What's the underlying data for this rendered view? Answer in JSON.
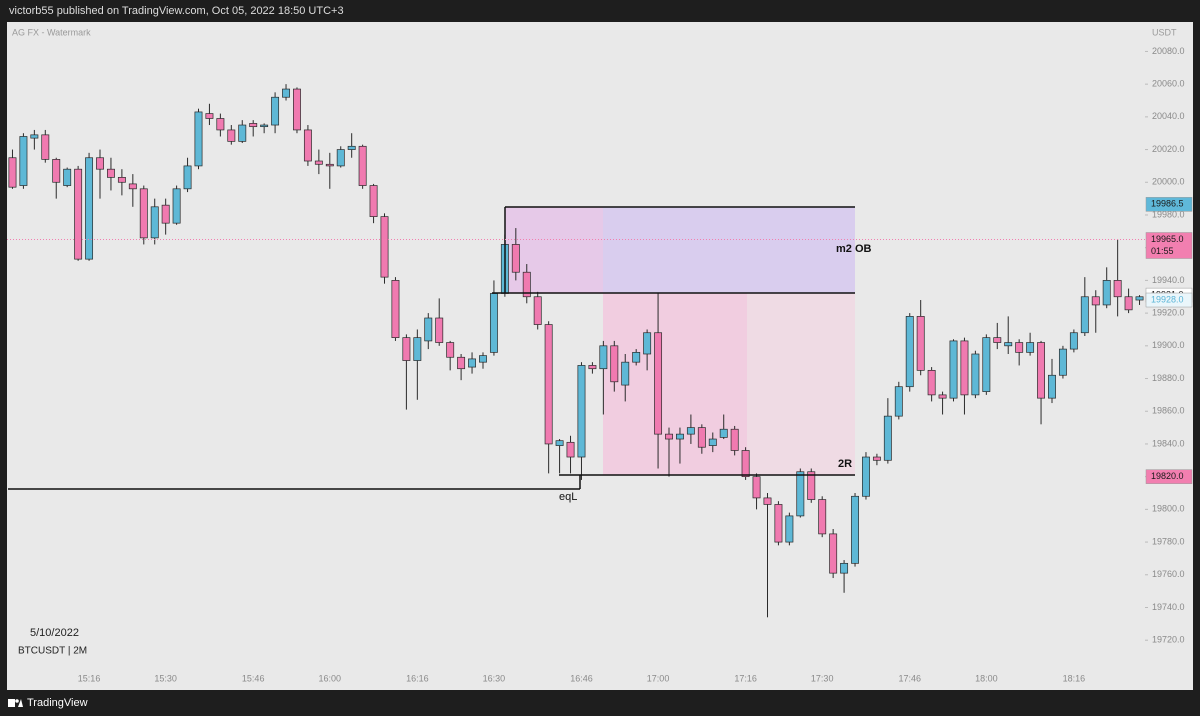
{
  "chart_data": {
    "type": "candlestick",
    "published": "victorb55 published on TradingView.com, Oct 05, 2022 18:50 UTC+3",
    "watermark": "AG FX - Watermark",
    "currency": "USDT",
    "date": "5/10/2022",
    "symbol": "BTCUSDT | 2M",
    "brand": "TradingView",
    "annotations": [
      "m2 OB",
      "2R",
      "eqL"
    ],
    "up_color": "#5eb8d6",
    "down_color": "#f07ab0",
    "categories": [
      null,
      null,
      null,
      null,
      null,
      null,
      null,
      "15:16",
      null,
      null,
      null,
      null,
      null,
      null,
      "15:30",
      null,
      null,
      null,
      null,
      null,
      null,
      null,
      "15:46",
      null,
      null,
      null,
      null,
      null,
      null,
      "16:00",
      null,
      null,
      null,
      null,
      null,
      null,
      null,
      "16:16",
      null,
      null,
      null,
      null,
      null,
      null,
      "16:30",
      null,
      null,
      null,
      null,
      null,
      null,
      null,
      "16:46",
      null,
      null,
      null,
      null,
      null,
      null,
      "17:00",
      null,
      null,
      null,
      null,
      null,
      null,
      null,
      "17:16",
      null,
      null,
      null,
      null,
      null,
      null,
      "17:30",
      null,
      null,
      null,
      null,
      null,
      null,
      null,
      "17:46",
      null,
      null,
      null,
      null,
      null,
      null,
      "18:00",
      null,
      null,
      null,
      null,
      null,
      null,
      null,
      "18:16",
      null,
      null,
      null,
      null,
      null,
      null
    ],
    "open": [
      20015,
      19998,
      20027,
      20029,
      20014,
      19998,
      20008,
      19953,
      20015,
      20008,
      20003,
      19999,
      19996,
      19966,
      19986,
      19975,
      19996,
      20010,
      20042,
      20039,
      20032,
      20025,
      20036,
      20034,
      20035,
      20052,
      20057,
      20032,
      20013,
      20011,
      20010,
      20020,
      20022,
      19998,
      19979,
      19940,
      19905,
      19891,
      19903,
      19917,
      19902,
      19893,
      19887,
      19890,
      19896,
      19932,
      19962,
      19945,
      19930,
      19913,
      19839,
      19841,
      19832,
      19888,
      19886,
      19900,
      19876,
      19890,
      19895,
      19908,
      19846,
      19843,
      19846,
      19850,
      19839,
      19844,
      19849,
      19836,
      19820,
      19807,
      19803,
      19780,
      19796,
      19823,
      19806,
      19785,
      19761,
      19767,
      19808,
      19832,
      19830,
      19857,
      19875,
      19918,
      19885,
      19870,
      19868,
      19903,
      19870,
      19872,
      19905,
      19900,
      19902,
      19896,
      19902,
      19868,
      19882,
      19898,
      19908,
      19930,
      19925,
      19940,
      19930,
      19928
    ],
    "high": [
      20020,
      20030,
      20032,
      20032,
      20015,
      20009,
      20010,
      20018,
      20020,
      20015,
      20008,
      20005,
      19998,
      19990,
      19990,
      19998,
      20015,
      20045,
      20048,
      20042,
      20035,
      20038,
      20038,
      20036,
      20055,
      20060,
      20058,
      20035,
      20020,
      20018,
      20022,
      20030,
      20023,
      19999,
      19981,
      19942,
      19907,
      19910,
      19920,
      19929,
      19903,
      19895,
      19896,
      19896,
      19940,
      19968,
      19972,
      19950,
      19933,
      19915,
      19843,
      19845,
      19890,
      19890,
      19903,
      19903,
      19895,
      19898,
      19910,
      19932,
      19850,
      19850,
      19858,
      19852,
      19847,
      19858,
      19851,
      19838,
      19822,
      19810,
      19805,
      19798,
      19825,
      19825,
      19808,
      19788,
      19769,
      19810,
      19835,
      19834,
      19868,
      19878,
      19920,
      19928,
      19887,
      19872,
      19904,
      19905,
      19897,
      19907,
      19914,
      19918,
      19904,
      19908,
      19903,
      19892,
      19900,
      19910,
      19942,
      19934,
      19948,
      19965,
      19935,
      19931
    ],
    "low": [
      19996,
      19996,
      20020,
      20012,
      19990,
      19997,
      19952,
      19952,
      19990,
      19995,
      19992,
      19985,
      19962,
      19962,
      19968,
      19974,
      19994,
      20008,
      20035,
      20028,
      20023,
      20024,
      20028,
      20030,
      20030,
      20050,
      20030,
      20010,
      20005,
      19996,
      20009,
      20015,
      19996,
      19975,
      19938,
      19903,
      19861,
      19867,
      19898,
      19900,
      19885,
      19879,
      19883,
      19886,
      19894,
      19930,
      19940,
      19926,
      19910,
      19822,
      19822,
      19822,
      19818,
      19883,
      19858,
      19872,
      19866,
      19888,
      19885,
      19825,
      19820,
      19828,
      19840,
      19834,
      19835,
      19843,
      19833,
      19818,
      19800,
      19734,
      19778,
      19778,
      19795,
      19804,
      19783,
      19758,
      19749,
      19765,
      19806,
      19827,
      19828,
      19855,
      19872,
      19882,
      19866,
      19858,
      19866,
      19858,
      19868,
      19870,
      19898,
      19895,
      19888,
      19894,
      19852,
      19865,
      19880,
      19896,
      19906,
      19908,
      19923,
      19918,
      19920,
      19925
    ],
    "close": [
      19997,
      20028,
      20029,
      20014,
      20000,
      20008,
      19953,
      20015,
      20008,
      20003,
      20000,
      19996,
      19966,
      19985,
      19975,
      19996,
      20010,
      20043,
      20039,
      20032,
      20025,
      20035,
      20034,
      20035,
      20052,
      20057,
      20032,
      20013,
      20011,
      20010,
      20020,
      20022,
      19998,
      19979,
      19942,
      19905,
      19891,
      19905,
      19917,
      19902,
      19893,
      19886,
      19892,
      19894,
      19932,
      19962,
      19945,
      19930,
      19913,
      19840,
      19842,
      19832,
      19888,
      19886,
      19900,
      19878,
      19890,
      19896,
      19908,
      19846,
      19843,
      19846,
      19850,
      19838,
      19843,
      19849,
      19836,
      19820,
      19807,
      19803,
      19780,
      19796,
      19823,
      19806,
      19785,
      19761,
      19767,
      19808,
      19832,
      19830,
      19857,
      19875,
      19918,
      19885,
      19870,
      19868,
      19903,
      19870,
      19895,
      19905,
      19902,
      19902,
      19896,
      19902,
      19868,
      19882,
      19898,
      19908,
      19930,
      19925,
      19940,
      19930,
      19922,
      19930
    ],
    "ylim": [
      19703,
      20098
    ],
    "yticks": [
      {
        "value": 19720,
        "label": "19720.0"
      },
      {
        "value": 19740,
        "label": "19740.0"
      },
      {
        "value": 19760,
        "label": "19760.0"
      },
      {
        "value": 19780,
        "label": "19780.0"
      },
      {
        "value": 19800,
        "label": "19800.0"
      },
      {
        "value": 19820,
        "label": "19820.0"
      },
      {
        "value": 19840,
        "label": "19840.0"
      },
      {
        "value": 19860,
        "label": "19860.0"
      },
      {
        "value": 19880,
        "label": "19880.0"
      },
      {
        "value": 19900,
        "label": "19900.0"
      },
      {
        "value": 19920,
        "label": "19920.0"
      },
      {
        "value": 19940,
        "label": "19940.0"
      },
      {
        "value": 19960,
        "label": "19960.0"
      },
      {
        "value": 19980,
        "label": "19980.0"
      },
      {
        "value": 20000,
        "label": "20000.0"
      },
      {
        "value": 20020,
        "label": "20020.0"
      },
      {
        "value": 20040,
        "label": "20040.0"
      },
      {
        "value": 20060,
        "label": "20060.0"
      },
      {
        "value": 20080,
        "label": "20080.0"
      }
    ],
    "price_labels": [
      {
        "value": 19986.5,
        "label": "19986.5",
        "color": "#5fb8d9",
        "text_color": "#1a1a1a"
      },
      {
        "value": 19965,
        "label": "19965.0",
        "countdown": "01:55",
        "color": "#f27fb0",
        "text_color": "#1a1a1a",
        "line": true
      },
      {
        "value": 19931,
        "label": "19931.0",
        "color": "#ffffff",
        "text_color": "#1a1a1a"
      },
      {
        "value": 19928,
        "label": "19928.0",
        "color": "#eaf6fb",
        "text_color": "#5ab4d6"
      },
      {
        "value": 19820,
        "label": "19820.0",
        "color": "#f27fb0",
        "text_color": "#1a1a1a"
      }
    ]
  }
}
